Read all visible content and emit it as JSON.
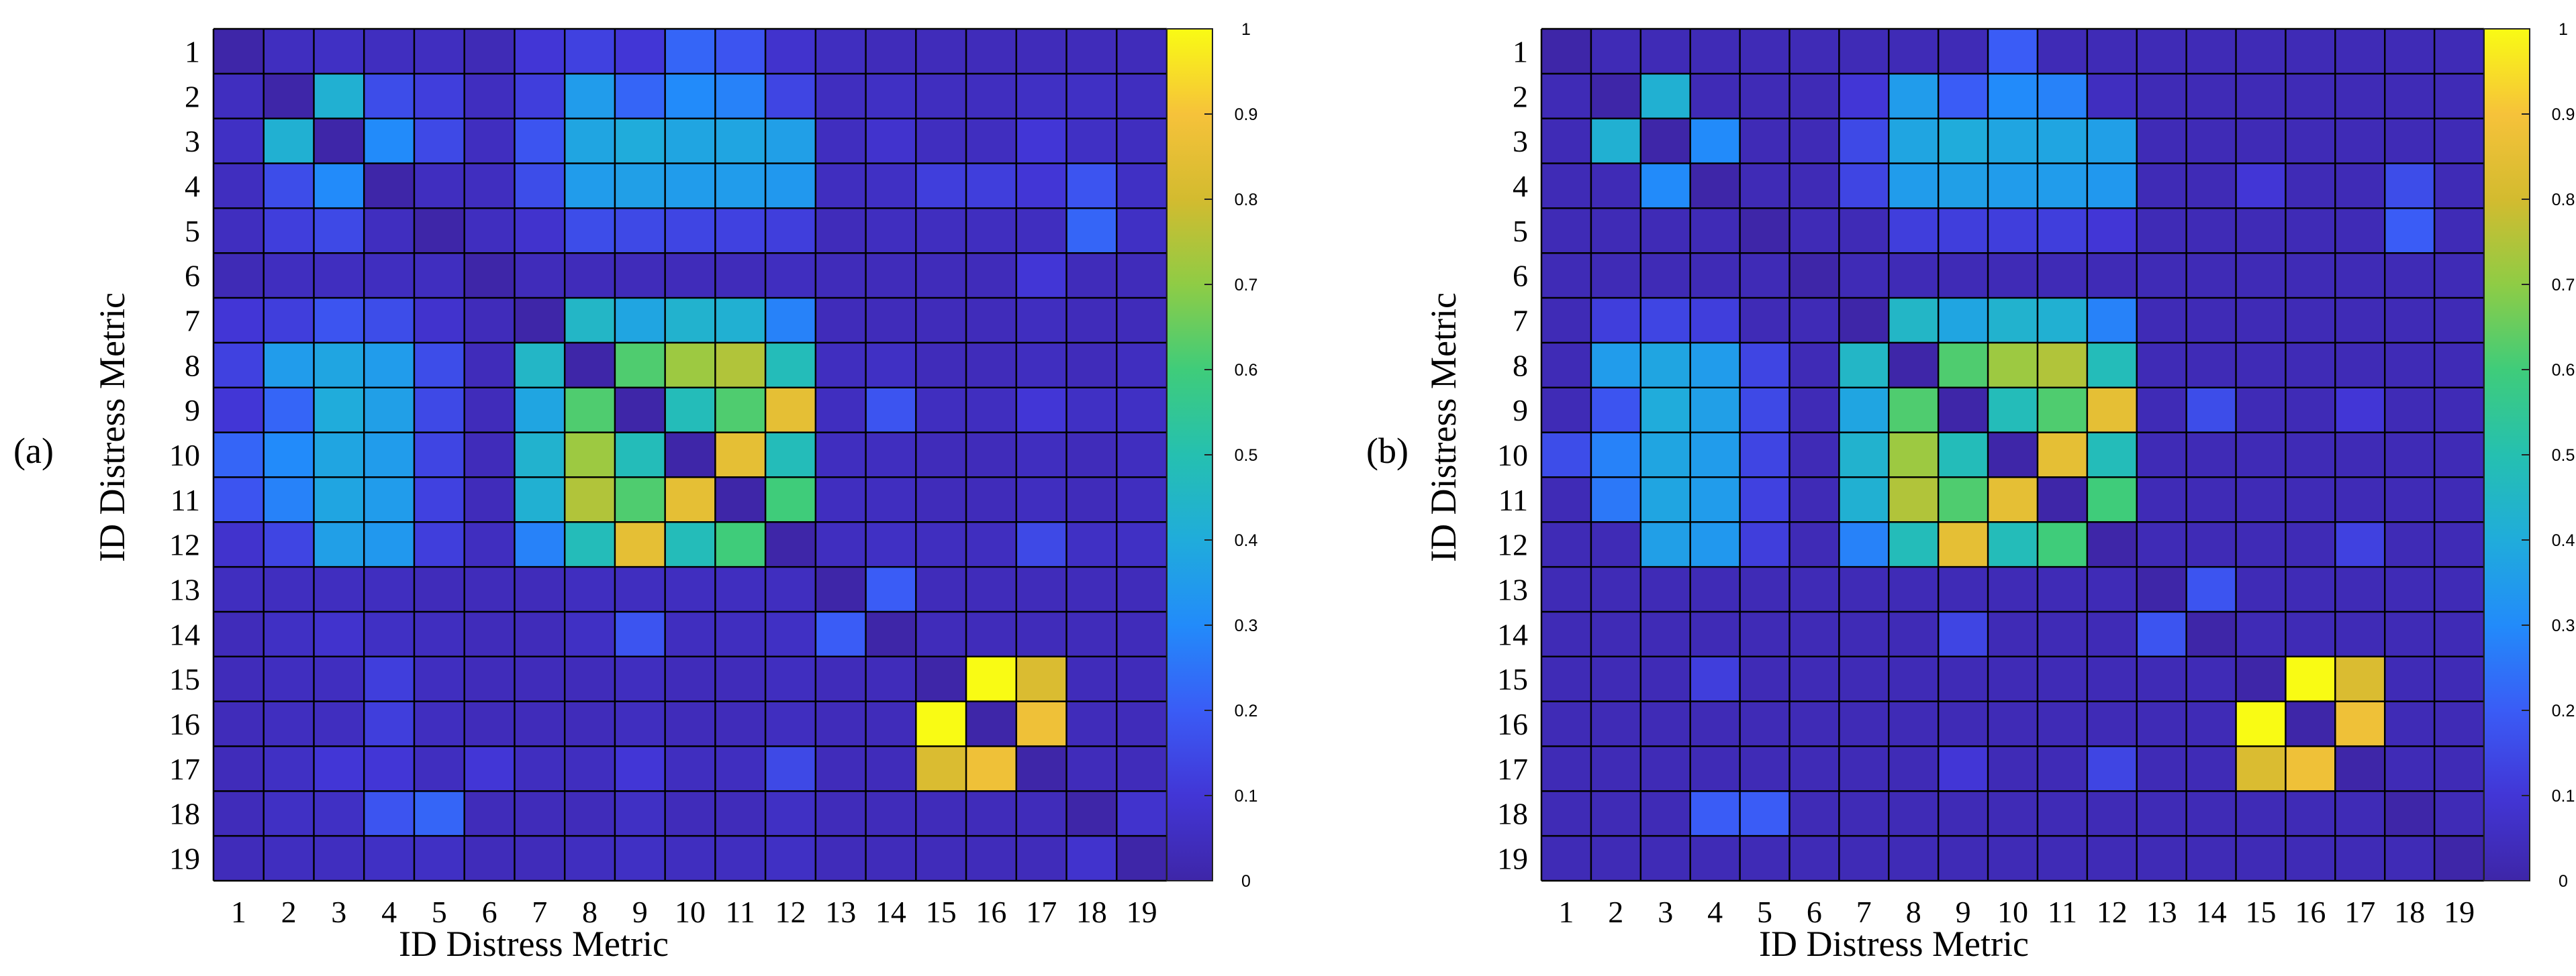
{
  "figure": {
    "colors": {
      "viridis_stops": [
        "#3e26a8",
        "#4236d6",
        "#3a5cf6",
        "#228bfa",
        "#20acdb",
        "#25c0b0",
        "#3fcc7a",
        "#8fcc45",
        "#d3bb2f",
        "#f6c23a",
        "#f9fb14"
      ],
      "grid": "#000000",
      "background": "#ffffff"
    }
  },
  "chart_data": [
    {
      "type": "heatmap",
      "panel_label": "(a)",
      "title": "",
      "xlabel": "ID Distress Metric",
      "ylabel": "ID Distress Metric",
      "x_tick_labels": [
        "1",
        "2",
        "3",
        "4",
        "5",
        "6",
        "7",
        "8",
        "9",
        "10",
        "11",
        "12",
        "13",
        "14",
        "15",
        "16",
        "17",
        "18",
        "19"
      ],
      "y_tick_labels": [
        "1",
        "2",
        "3",
        "4",
        "5",
        "6",
        "7",
        "8",
        "9",
        "10",
        "11",
        "12",
        "13",
        "14",
        "15",
        "16",
        "17",
        "18",
        "19"
      ],
      "clim": [
        0,
        1
      ],
      "colorbar_ticks": [
        "0",
        "0.1",
        "0.2",
        "0.3",
        "0.4",
        "0.5",
        "0.6",
        "0.7",
        "0.8",
        "0.9",
        "1"
      ],
      "values": [
        [
          0.0,
          0.05,
          0.06,
          0.05,
          0.05,
          0.03,
          0.1,
          0.13,
          0.1,
          0.22,
          0.18,
          0.08,
          0.05,
          0.04,
          0.04,
          0.04,
          0.04,
          0.04,
          0.04
        ],
        [
          0.05,
          0.0,
          0.42,
          0.16,
          0.12,
          0.05,
          0.12,
          0.35,
          0.22,
          0.3,
          0.28,
          0.14,
          0.05,
          0.06,
          0.05,
          0.05,
          0.06,
          0.06,
          0.05
        ],
        [
          0.06,
          0.42,
          0.0,
          0.3,
          0.15,
          0.05,
          0.18,
          0.38,
          0.4,
          0.38,
          0.38,
          0.36,
          0.05,
          0.08,
          0.05,
          0.05,
          0.1,
          0.06,
          0.05
        ],
        [
          0.05,
          0.16,
          0.3,
          0.0,
          0.05,
          0.05,
          0.16,
          0.35,
          0.36,
          0.35,
          0.35,
          0.34,
          0.05,
          0.06,
          0.12,
          0.12,
          0.1,
          0.18,
          0.06
        ],
        [
          0.05,
          0.12,
          0.15,
          0.05,
          0.0,
          0.05,
          0.08,
          0.16,
          0.15,
          0.14,
          0.13,
          0.12,
          0.04,
          0.05,
          0.05,
          0.05,
          0.05,
          0.22,
          0.06
        ],
        [
          0.03,
          0.05,
          0.05,
          0.05,
          0.05,
          0.0,
          0.04,
          0.04,
          0.04,
          0.04,
          0.04,
          0.05,
          0.04,
          0.04,
          0.04,
          0.04,
          0.1,
          0.04,
          0.04
        ],
        [
          0.1,
          0.12,
          0.18,
          0.16,
          0.08,
          0.04,
          0.0,
          0.45,
          0.38,
          0.43,
          0.42,
          0.28,
          0.04,
          0.04,
          0.04,
          0.04,
          0.05,
          0.04,
          0.04
        ],
        [
          0.13,
          0.35,
          0.38,
          0.35,
          0.16,
          0.04,
          0.45,
          0.0,
          0.62,
          0.72,
          0.75,
          0.48,
          0.05,
          0.06,
          0.04,
          0.04,
          0.05,
          0.04,
          0.05
        ],
        [
          0.1,
          0.22,
          0.4,
          0.36,
          0.15,
          0.04,
          0.38,
          0.62,
          0.0,
          0.48,
          0.62,
          0.85,
          0.05,
          0.18,
          0.05,
          0.05,
          0.1,
          0.06,
          0.06
        ],
        [
          0.22,
          0.3,
          0.38,
          0.35,
          0.14,
          0.04,
          0.43,
          0.72,
          0.48,
          0.0,
          0.85,
          0.48,
          0.05,
          0.05,
          0.04,
          0.04,
          0.05,
          0.04,
          0.05
        ],
        [
          0.18,
          0.28,
          0.38,
          0.35,
          0.13,
          0.04,
          0.42,
          0.75,
          0.62,
          0.85,
          0.0,
          0.6,
          0.05,
          0.05,
          0.04,
          0.04,
          0.05,
          0.04,
          0.05
        ],
        [
          0.08,
          0.14,
          0.36,
          0.34,
          0.12,
          0.05,
          0.28,
          0.48,
          0.85,
          0.48,
          0.6,
          0.0,
          0.05,
          0.06,
          0.05,
          0.05,
          0.15,
          0.06,
          0.06
        ],
        [
          0.05,
          0.05,
          0.05,
          0.05,
          0.04,
          0.04,
          0.04,
          0.05,
          0.05,
          0.05,
          0.05,
          0.05,
          0.0,
          0.2,
          0.04,
          0.04,
          0.04,
          0.04,
          0.04
        ],
        [
          0.04,
          0.06,
          0.08,
          0.06,
          0.05,
          0.04,
          0.04,
          0.06,
          0.18,
          0.05,
          0.05,
          0.06,
          0.2,
          0.0,
          0.04,
          0.04,
          0.04,
          0.04,
          0.04
        ],
        [
          0.04,
          0.05,
          0.05,
          0.12,
          0.05,
          0.04,
          0.04,
          0.04,
          0.05,
          0.04,
          0.04,
          0.05,
          0.04,
          0.04,
          0.0,
          1.0,
          0.82,
          0.04,
          0.04
        ],
        [
          0.04,
          0.05,
          0.05,
          0.12,
          0.05,
          0.04,
          0.04,
          0.04,
          0.05,
          0.04,
          0.04,
          0.05,
          0.04,
          0.04,
          1.0,
          0.0,
          0.88,
          0.04,
          0.04
        ],
        [
          0.04,
          0.06,
          0.1,
          0.1,
          0.05,
          0.1,
          0.05,
          0.05,
          0.1,
          0.05,
          0.05,
          0.15,
          0.04,
          0.04,
          0.82,
          0.88,
          0.0,
          0.04,
          0.04
        ],
        [
          0.04,
          0.06,
          0.06,
          0.18,
          0.22,
          0.04,
          0.04,
          0.04,
          0.06,
          0.04,
          0.04,
          0.06,
          0.04,
          0.04,
          0.04,
          0.04,
          0.04,
          0.0,
          0.08
        ],
        [
          0.04,
          0.05,
          0.05,
          0.06,
          0.06,
          0.04,
          0.04,
          0.05,
          0.06,
          0.05,
          0.05,
          0.06,
          0.04,
          0.04,
          0.04,
          0.04,
          0.04,
          0.08,
          0.0
        ]
      ]
    },
    {
      "type": "heatmap",
      "panel_label": "(b)",
      "title": "",
      "xlabel": "ID Distress Metric",
      "ylabel": "ID Distress Metric",
      "x_tick_labels": [
        "1",
        "2",
        "3",
        "4",
        "5",
        "6",
        "7",
        "8",
        "9",
        "10",
        "11",
        "12",
        "13",
        "14",
        "15",
        "16",
        "17",
        "18",
        "19"
      ],
      "y_tick_labels": [
        "1",
        "2",
        "3",
        "4",
        "5",
        "6",
        "7",
        "8",
        "9",
        "10",
        "11",
        "12",
        "13",
        "14",
        "15",
        "16",
        "17",
        "18",
        "19"
      ],
      "clim": [
        0,
        1
      ],
      "colorbar_ticks": [
        "0",
        "0.1",
        "0.2",
        "0.3",
        "0.4",
        "0.5",
        "0.6",
        "0.7",
        "0.8",
        "0.9",
        "1"
      ],
      "values": [
        [
          0.0,
          0.03,
          0.03,
          0.03,
          0.03,
          0.03,
          0.03,
          0.03,
          0.03,
          0.2,
          0.03,
          0.03,
          0.03,
          0.03,
          0.03,
          0.03,
          0.03,
          0.03,
          0.03
        ],
        [
          0.03,
          0.0,
          0.42,
          0.03,
          0.03,
          0.03,
          0.1,
          0.35,
          0.2,
          0.3,
          0.28,
          0.05,
          0.03,
          0.03,
          0.03,
          0.03,
          0.03,
          0.03,
          0.03
        ],
        [
          0.03,
          0.42,
          0.0,
          0.3,
          0.03,
          0.03,
          0.15,
          0.38,
          0.4,
          0.38,
          0.38,
          0.36,
          0.03,
          0.03,
          0.03,
          0.03,
          0.03,
          0.03,
          0.03
        ],
        [
          0.03,
          0.03,
          0.3,
          0.0,
          0.03,
          0.03,
          0.14,
          0.35,
          0.36,
          0.35,
          0.35,
          0.34,
          0.03,
          0.03,
          0.1,
          0.03,
          0.03,
          0.16,
          0.03
        ],
        [
          0.03,
          0.03,
          0.03,
          0.03,
          0.0,
          0.03,
          0.03,
          0.12,
          0.12,
          0.12,
          0.12,
          0.1,
          0.03,
          0.03,
          0.03,
          0.03,
          0.03,
          0.2,
          0.03
        ],
        [
          0.03,
          0.03,
          0.03,
          0.03,
          0.03,
          0.0,
          0.03,
          0.03,
          0.03,
          0.03,
          0.03,
          0.03,
          0.03,
          0.03,
          0.03,
          0.03,
          0.03,
          0.03,
          0.03
        ],
        [
          0.03,
          0.12,
          0.14,
          0.12,
          0.03,
          0.03,
          0.0,
          0.45,
          0.38,
          0.43,
          0.42,
          0.28,
          0.03,
          0.03,
          0.03,
          0.03,
          0.03,
          0.03,
          0.03
        ],
        [
          0.03,
          0.35,
          0.38,
          0.35,
          0.14,
          0.03,
          0.45,
          0.0,
          0.62,
          0.72,
          0.75,
          0.48,
          0.03,
          0.03,
          0.03,
          0.03,
          0.03,
          0.03,
          0.03
        ],
        [
          0.03,
          0.18,
          0.4,
          0.36,
          0.15,
          0.03,
          0.38,
          0.62,
          0.0,
          0.48,
          0.62,
          0.85,
          0.03,
          0.16,
          0.03,
          0.03,
          0.1,
          0.03,
          0.03
        ],
        [
          0.16,
          0.28,
          0.38,
          0.35,
          0.14,
          0.03,
          0.43,
          0.72,
          0.48,
          0.0,
          0.85,
          0.48,
          0.03,
          0.03,
          0.03,
          0.03,
          0.03,
          0.03,
          0.03
        ],
        [
          0.03,
          0.26,
          0.38,
          0.35,
          0.13,
          0.03,
          0.42,
          0.75,
          0.62,
          0.85,
          0.0,
          0.6,
          0.03,
          0.03,
          0.03,
          0.03,
          0.03,
          0.03,
          0.03
        ],
        [
          0.03,
          0.03,
          0.36,
          0.34,
          0.12,
          0.03,
          0.28,
          0.48,
          0.85,
          0.48,
          0.6,
          0.0,
          0.03,
          0.03,
          0.03,
          0.03,
          0.13,
          0.03,
          0.03
        ],
        [
          0.03,
          0.03,
          0.03,
          0.03,
          0.03,
          0.03,
          0.03,
          0.03,
          0.03,
          0.03,
          0.03,
          0.03,
          0.0,
          0.18,
          0.03,
          0.03,
          0.03,
          0.03,
          0.03
        ],
        [
          0.03,
          0.03,
          0.03,
          0.03,
          0.03,
          0.03,
          0.03,
          0.03,
          0.14,
          0.03,
          0.03,
          0.03,
          0.18,
          0.0,
          0.03,
          0.03,
          0.03,
          0.03,
          0.03
        ],
        [
          0.03,
          0.03,
          0.03,
          0.12,
          0.03,
          0.03,
          0.03,
          0.03,
          0.03,
          0.03,
          0.03,
          0.03,
          0.03,
          0.03,
          0.0,
          1.0,
          0.82,
          0.03,
          0.03
        ],
        [
          0.03,
          0.03,
          0.03,
          0.03,
          0.03,
          0.03,
          0.03,
          0.03,
          0.03,
          0.03,
          0.03,
          0.03,
          0.03,
          0.03,
          1.0,
          0.0,
          0.88,
          0.03,
          0.03
        ],
        [
          0.03,
          0.03,
          0.03,
          0.03,
          0.03,
          0.03,
          0.03,
          0.03,
          0.1,
          0.03,
          0.03,
          0.14,
          0.03,
          0.03,
          0.82,
          0.88,
          0.0,
          0.03,
          0.03
        ],
        [
          0.03,
          0.03,
          0.03,
          0.2,
          0.2,
          0.03,
          0.03,
          0.03,
          0.03,
          0.03,
          0.03,
          0.03,
          0.03,
          0.03,
          0.03,
          0.03,
          0.03,
          0.0,
          0.03
        ],
        [
          0.03,
          0.03,
          0.03,
          0.03,
          0.03,
          0.03,
          0.03,
          0.03,
          0.03,
          0.03,
          0.03,
          0.03,
          0.03,
          0.03,
          0.03,
          0.03,
          0.03,
          0.03,
          0.0
        ]
      ]
    }
  ]
}
